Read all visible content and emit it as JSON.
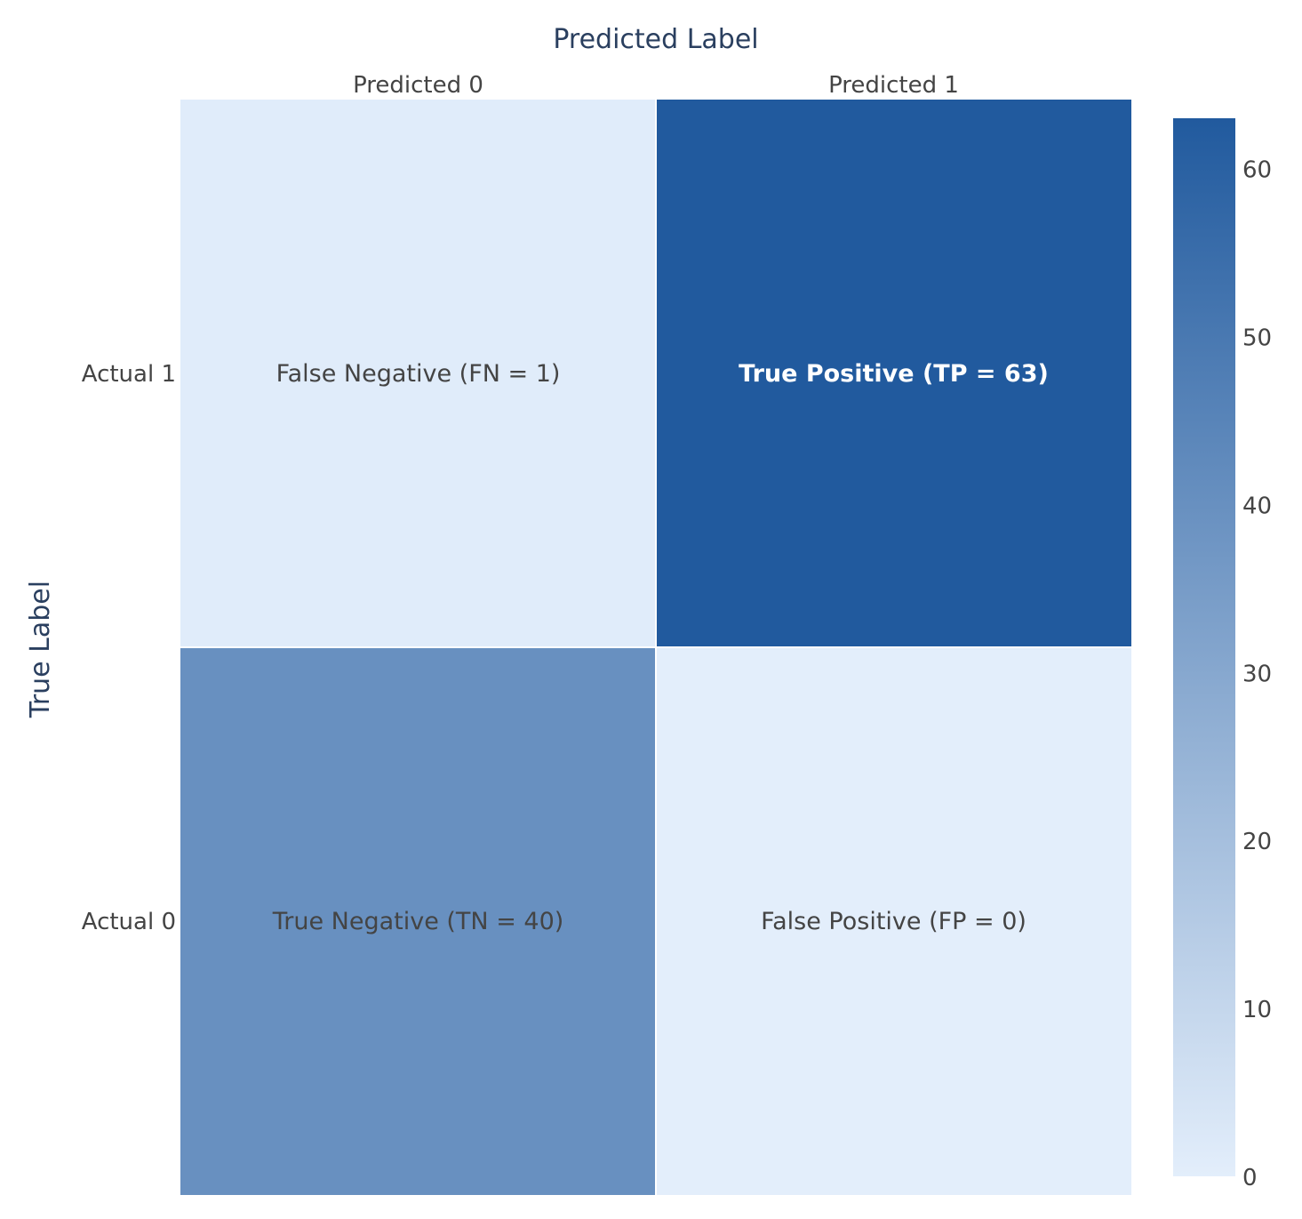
{
  "chart_data": {
    "type": "heatmap",
    "title": "",
    "xlabel": "Predicted Label",
    "ylabel": "True Label",
    "x_categories": [
      "Predicted 0",
      "Predicted 1"
    ],
    "y_categories": [
      "Actual 1",
      "Actual 0"
    ],
    "cells": [
      [
        {
          "value": 1,
          "label": "False Negative (FN = 1)"
        },
        {
          "value": 63,
          "label": "True Positive (TP = 63)"
        }
      ],
      [
        {
          "value": 40,
          "label": "True Negative (TN = 40)"
        },
        {
          "value": 0,
          "label": "False Positive (FP = 0)"
        }
      ]
    ],
    "colorscale": {
      "min": 0,
      "max": 63,
      "low_color": "#e3eefb",
      "high_color": "#215a9e",
      "ticks": [
        "0",
        "10",
        "20",
        "30",
        "40",
        "50",
        "60"
      ]
    },
    "colorbar": true,
    "grid": false
  }
}
